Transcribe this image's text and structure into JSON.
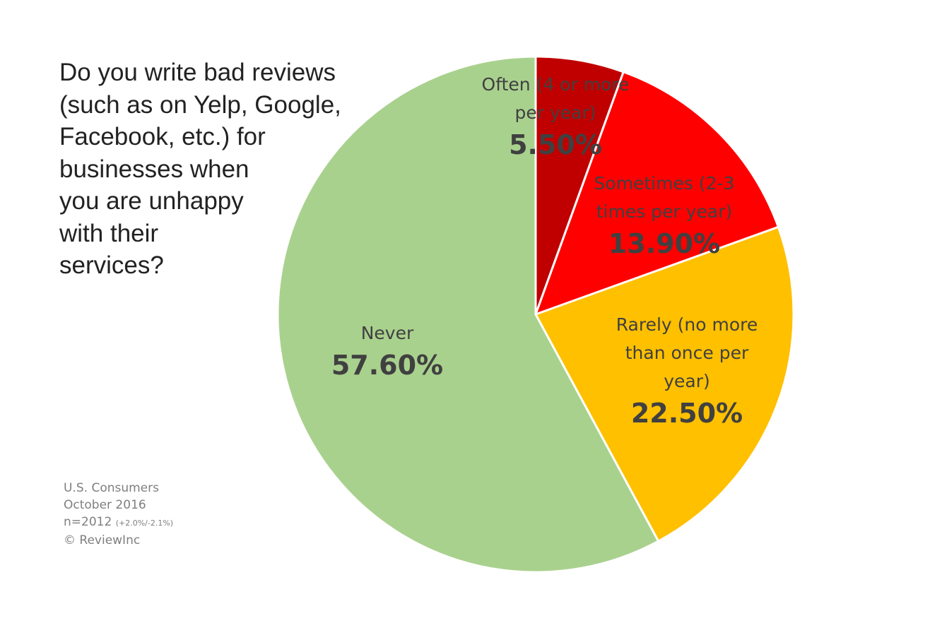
{
  "chart_data": {
    "type": "pie",
    "title_lines": [
      "Do you write bad reviews",
      "(such as on Yelp, Google,",
      "Facebook, etc.) for",
      "businesses when",
      "you are unhappy",
      "with their",
      "services?"
    ],
    "slices": [
      {
        "label_lines": [
          "Often (4 or more",
          "per year)"
        ],
        "value": 5.5,
        "value_label": "5.50%",
        "color": "#C00000"
      },
      {
        "label_lines": [
          "Sometimes (2-3",
          "times per year)"
        ],
        "value": 13.9,
        "value_label": "13.90%",
        "color": "#FF0000"
      },
      {
        "label_lines": [
          "Rarely (no more",
          "than once per",
          "year)"
        ],
        "value": 22.5,
        "value_label": "22.50%",
        "color": "#FFC000"
      },
      {
        "label_lines": [
          "Never"
        ],
        "value": 57.6,
        "value_label": "57.60%",
        "color": "#A9D18E"
      }
    ],
    "start": "top, clockwise"
  },
  "footnote": {
    "line1": "U.S. Consumers",
    "line2": "October 2016",
    "line3": "n=2012",
    "line3_small": "(+2.0%/-2.1%)",
    "line4": "© ReviewInc"
  }
}
